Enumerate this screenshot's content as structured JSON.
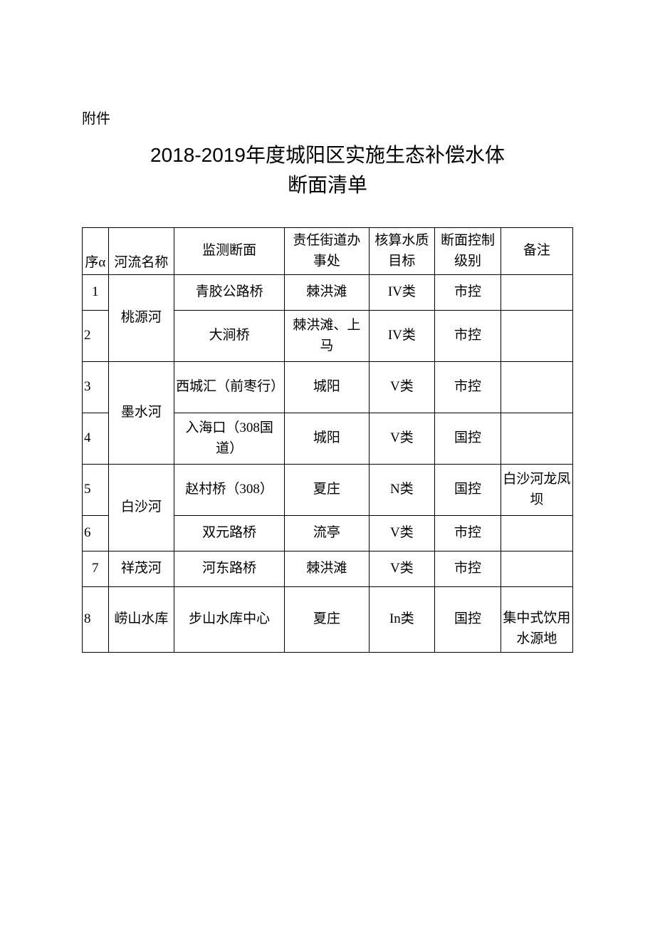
{
  "attachment_label": "附件",
  "title_line1": "2018-2019年度城阳区实施生态补偿水体",
  "title_line2": "断面清单",
  "headers": {
    "seq": "序α",
    "river": "河流名称",
    "section": "监测断面",
    "office": "责任街道办事处",
    "target": "核算水质目标",
    "level": "断面控制级别",
    "remark": "备注"
  },
  "rivers": {
    "taoyuan": "桃源河",
    "moshui": "墨水河",
    "baisha": "白沙河",
    "xiangmao": "祥茂河",
    "laoshan": "崂山水库"
  },
  "rows": {
    "r1": {
      "seq": "1",
      "section": "青胶公路桥",
      "office": "棘洪滩",
      "target": "IV类",
      "level": "市控",
      "remark": ""
    },
    "r2": {
      "seq": "2",
      "section": "大涧桥",
      "office": "棘洪滩、上马",
      "target": "IV类",
      "level": "市控",
      "remark": ""
    },
    "r3": {
      "seq": "3",
      "section": "西城汇（前枣行）",
      "office": "城阳",
      "target": "V类",
      "level": "市控",
      "remark": ""
    },
    "r4": {
      "seq": "4",
      "section": "入海口（308国道）",
      "office": "城阳",
      "target": "V类",
      "level": "国控",
      "remark": ""
    },
    "r5": {
      "seq": "5",
      "section": "赵村桥（308）",
      "office": "夏庄",
      "target": "N类",
      "level": "国控",
      "remark": "白沙河龙凤坝"
    },
    "r6": {
      "seq": "6",
      "section": "双元路桥",
      "office": "流亭",
      "target": "V类",
      "level": "市控",
      "remark": ""
    },
    "r7": {
      "seq": "7",
      "section": "河东路桥",
      "office": "棘洪滩",
      "target": "V类",
      "level": "市控",
      "remark": ""
    },
    "r8": {
      "seq": "8",
      "section": "步山水库中心",
      "office": "夏庄",
      "target": "In类",
      "level": "国控",
      "remark": "集中式饮用水源地"
    }
  },
  "colors": {
    "text": "#000000",
    "background": "#ffffff",
    "border": "#000000"
  }
}
